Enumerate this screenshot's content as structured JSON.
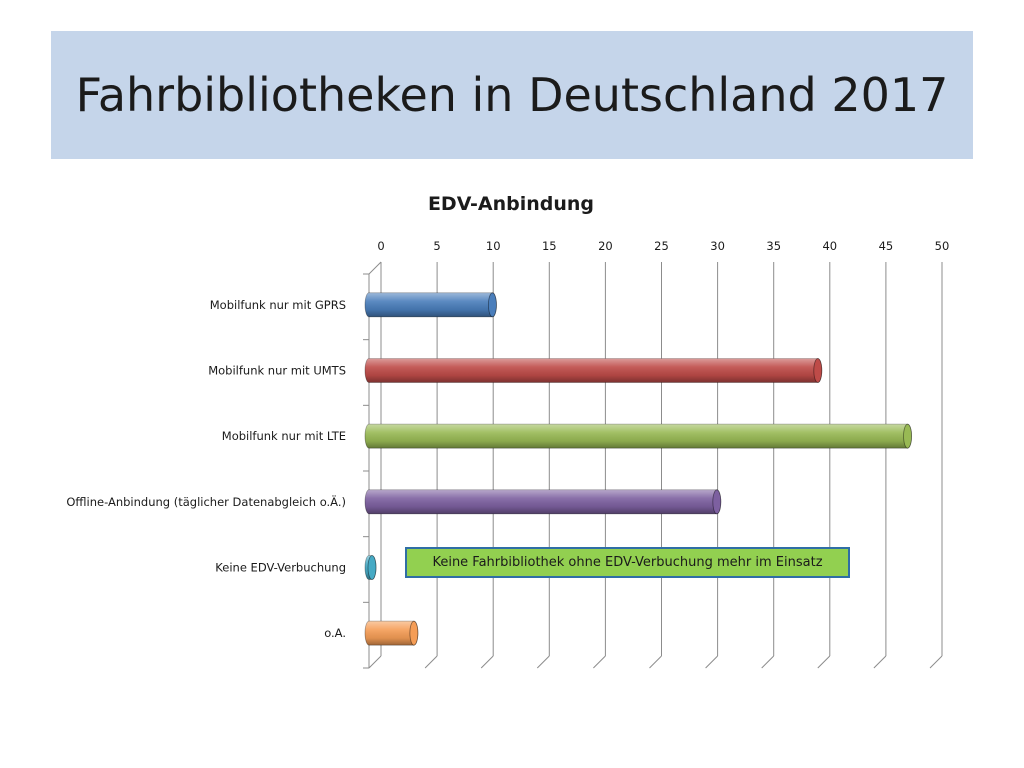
{
  "slide": {
    "title": "Fahrbibliotheken in Deutschland 2017"
  },
  "chart_data": {
    "type": "bar",
    "orientation": "horizontal",
    "title": "EDV-Anbindung",
    "xlabel": "",
    "ylabel": "",
    "categories": [
      "Mobilfunk nur mit GPRS",
      "Mobilfunk nur mit UMTS",
      "Mobilfunk nur mit LTE",
      "Offline-Anbindung (täglicher Datenabgleich o.Ä.)",
      "Keine EDV-Verbuchung",
      "o.A."
    ],
    "values": [
      11,
      40,
      48,
      31,
      0,
      4
    ],
    "colors": [
      "#4a7ebb",
      "#be4b48",
      "#98b954",
      "#7d60a0",
      "#46aac5",
      "#f59d56"
    ],
    "xlim": [
      0,
      50
    ],
    "x_ticks": [
      0,
      5,
      10,
      15,
      20,
      25,
      30,
      35,
      40,
      45,
      50
    ],
    "axis_position": "top",
    "grid": true,
    "legend": "none",
    "annotation": "Keine Fahrbibliothek ohne EDV-Verbuchung mehr im Einsatz"
  }
}
